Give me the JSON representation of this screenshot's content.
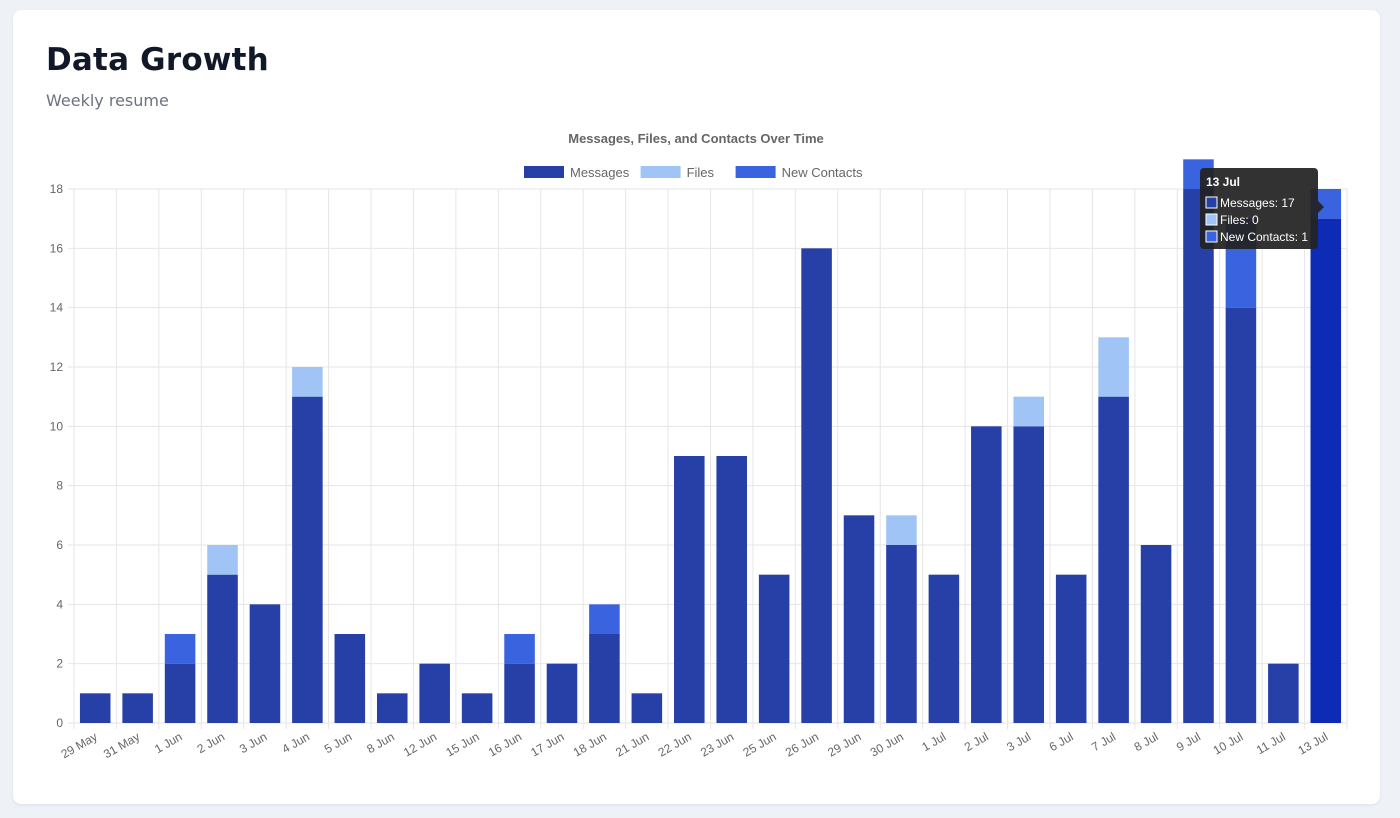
{
  "header": {
    "title": "Data Growth",
    "subtitle": "Weekly resume"
  },
  "colors": {
    "messages": "#2640a8",
    "files": "#a0c4f5",
    "new_contacts": "#3a63e0",
    "messages_active": "#0e2bb5",
    "grid": "#e6e6e6",
    "tooltip_bg": "#222222"
  },
  "chart_data": {
    "type": "bar",
    "stacked": true,
    "title": "Messages, Files, and Contacts Over Time",
    "categories": [
      "29 May",
      "31 May",
      "1 Jun",
      "2 Jun",
      "3 Jun",
      "4 Jun",
      "5 Jun",
      "8 Jun",
      "12 Jun",
      "15 Jun",
      "16 Jun",
      "17 Jun",
      "18 Jun",
      "21 Jun",
      "22 Jun",
      "23 Jun",
      "25 Jun",
      "26 Jun",
      "29 Jun",
      "30 Jun",
      "1 Jul",
      "2 Jul",
      "3 Jul",
      "6 Jul",
      "7 Jul",
      "8 Jul",
      "9 Jul",
      "10 Jul",
      "11 Jul",
      "13 Jul"
    ],
    "series": [
      {
        "name": "Messages",
        "values": [
          1,
          1,
          2,
          5,
          4,
          11,
          3,
          1,
          2,
          1,
          2,
          2,
          3,
          1,
          9,
          9,
          5,
          16,
          7,
          6,
          5,
          10,
          10,
          5,
          11,
          6,
          18,
          14,
          2,
          17
        ]
      },
      {
        "name": "Files",
        "values": [
          0,
          0,
          0,
          1,
          0,
          1,
          0,
          0,
          0,
          0,
          0,
          0,
          0,
          0,
          0,
          0,
          0,
          0,
          0,
          1,
          0,
          0,
          1,
          0,
          2,
          0,
          0,
          0,
          0,
          0
        ]
      },
      {
        "name": "New Contacts",
        "values": [
          0,
          0,
          1,
          0,
          0,
          0,
          0,
          0,
          0,
          0,
          1,
          0,
          1,
          0,
          0,
          0,
          0,
          0,
          0,
          0,
          0,
          0,
          0,
          0,
          0,
          0,
          1,
          3,
          0,
          1
        ]
      }
    ],
    "ylim": [
      0,
      18
    ],
    "yticks": [
      "0",
      "2",
      "4",
      "6",
      "8",
      "10",
      "12",
      "14",
      "16",
      "18"
    ],
    "grid": true,
    "legend_position": "top",
    "tooltip": {
      "title": "13 Jul",
      "lines": [
        "Messages: 17",
        "Files: 0",
        "New Contacts: 1"
      ]
    }
  }
}
